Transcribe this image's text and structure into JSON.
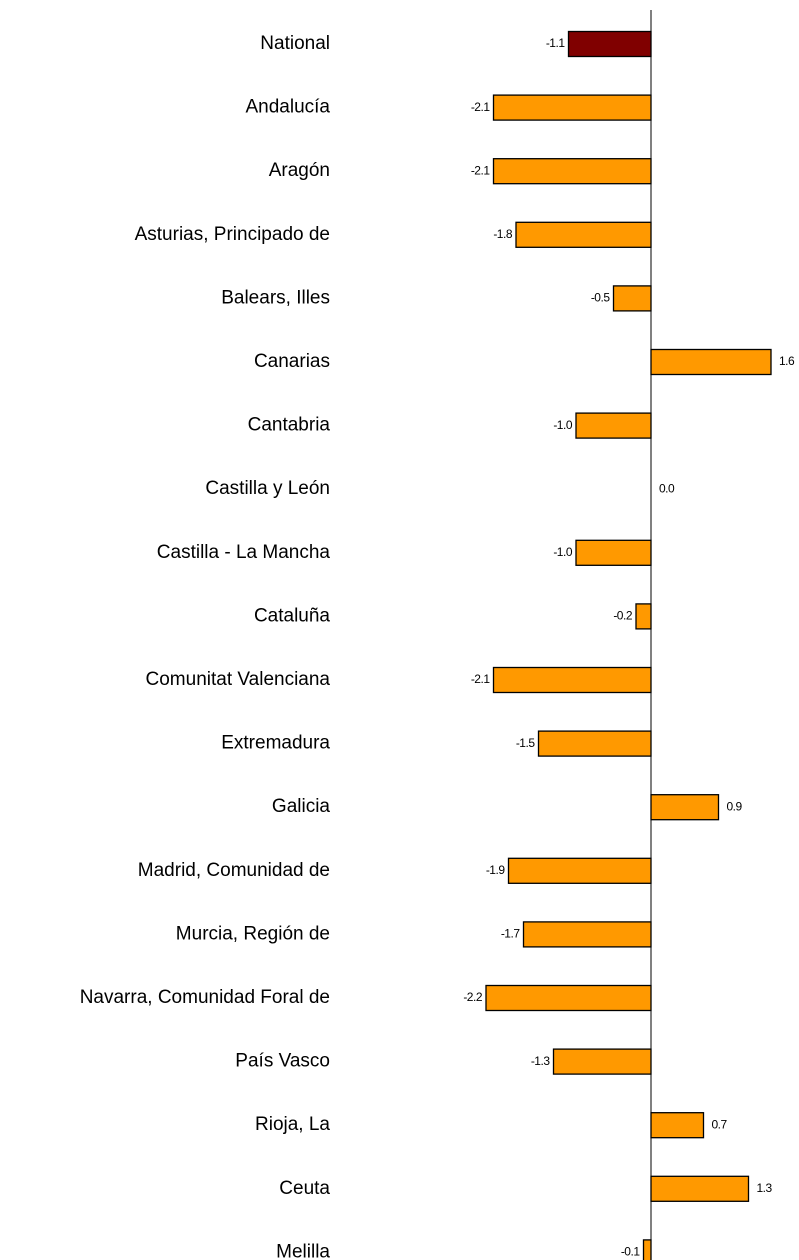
{
  "chart_data": {
    "type": "barh",
    "categories": [
      "National",
      "Andalucía",
      "Aragón",
      "Asturias, Principado de",
      "Balears, Illes",
      "Canarias",
      "Cantabria",
      "Castilla y León",
      "Castilla - La Mancha",
      "Cataluña",
      "Comunitat Valenciana",
      "Extremadura",
      "Galicia",
      "Madrid, Comunidad de",
      "Murcia, Región de",
      "Navarra, Comunidad Foral de",
      "País Vasco",
      "Rioja, La",
      "Ceuta",
      "Melilla"
    ],
    "values": [
      -1.1,
      -2.1,
      -2.1,
      -1.8,
      -0.5,
      1.6,
      -1.0,
      0.0,
      -1.0,
      -0.2,
      -2.1,
      -1.5,
      0.9,
      -1.9,
      -1.7,
      -2.2,
      -1.3,
      0.7,
      1.3,
      -0.1
    ],
    "value_labels": [
      "-1.1",
      "-2.1",
      "-2.1",
      "-1.8",
      "-0.5",
      "1.6",
      "-1.0",
      "0.0",
      "-1.0",
      "-0.2",
      "-2.1",
      "-1.5",
      "0.9",
      "-1.9",
      "-1.7",
      "-2.2",
      "-1.3",
      "0.7",
      "1.3",
      "-0.1"
    ],
    "colors": [
      "#800000",
      "#ff9900",
      "#ff9900",
      "#ff9900",
      "#ff9900",
      "#ff9900",
      "#ff9900",
      "#ff9900",
      "#ff9900",
      "#ff9900",
      "#ff9900",
      "#ff9900",
      "#ff9900",
      "#ff9900",
      "#ff9900",
      "#ff9900",
      "#ff9900",
      "#ff9900",
      "#ff9900",
      "#ff9900"
    ],
    "xlim": [
      -2.5,
      1.9
    ]
  }
}
